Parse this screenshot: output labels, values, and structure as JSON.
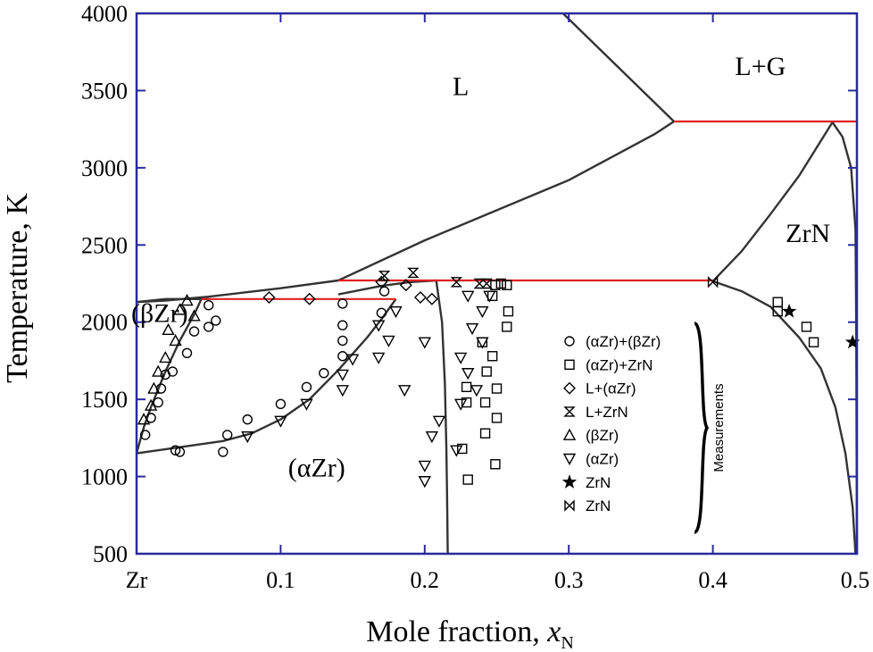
{
  "chart_data": {
    "type": "scatter",
    "title": "",
    "xlabel": "Mole fraction, ",
    "xlabel_var": "x",
    "xlabel_sub": "N",
    "ylabel": "Temperature, K",
    "xlim": [
      0,
      0.5
    ],
    "ylim": [
      500,
      4000
    ],
    "x_ticks": [
      {
        "value": 0,
        "label": "Zr"
      },
      {
        "value": 0.1,
        "label": "0.1"
      },
      {
        "value": 0.2,
        "label": "0.2"
      },
      {
        "value": 0.3,
        "label": "0.3"
      },
      {
        "value": 0.4,
        "label": "0.4"
      },
      {
        "value": 0.5,
        "label": "0.5"
      }
    ],
    "y_ticks": [
      {
        "value": 500,
        "label": "500"
      },
      {
        "value": 1000,
        "label": "1000"
      },
      {
        "value": 1500,
        "label": "1500"
      },
      {
        "value": 2000,
        "label": "2000"
      },
      {
        "value": 2500,
        "label": "2500"
      },
      {
        "value": 3000,
        "label": "3000"
      },
      {
        "value": 3500,
        "label": "3500"
      },
      {
        "value": 4000,
        "label": "4000"
      }
    ],
    "grid": false,
    "legend_position": "center-right",
    "legend_group_label": "Measurements",
    "regions": [
      {
        "label": "L",
        "x": 0.225,
        "y": 3470
      },
      {
        "label": "L+G",
        "x": 0.433,
        "y": 3600
      },
      {
        "label": "ZrN",
        "x": 0.466,
        "y": 2520
      },
      {
        "label": "(βZr)",
        "x": 0.016,
        "y": 2000
      },
      {
        "label": "(αZr)",
        "x": 0.125,
        "y": 1000
      }
    ],
    "phase_lines": [
      {
        "name": "liquidus-left",
        "color": "#333333",
        "points": [
          [
            0,
            2130
          ],
          [
            0.02,
            2140
          ],
          [
            0.05,
            2165
          ],
          [
            0.1,
            2220
          ],
          [
            0.14,
            2270
          ]
        ]
      },
      {
        "name": "liquidus-upper",
        "color": "#333333",
        "points": [
          [
            0.14,
            2270
          ],
          [
            0.2,
            2530
          ],
          [
            0.3,
            2920
          ],
          [
            0.36,
            3220
          ],
          [
            0.373,
            3300
          ]
        ]
      },
      {
        "name": "gas-boundary",
        "color": "#333333",
        "points": [
          [
            0.296,
            4000
          ],
          [
            0.373,
            3300
          ]
        ]
      },
      {
        "name": "zrn-congruent-left",
        "color": "#333333",
        "points": [
          [
            0.4,
            2265
          ],
          [
            0.42,
            2460
          ],
          [
            0.44,
            2700
          ],
          [
            0.46,
            2950
          ],
          [
            0.483,
            3295
          ]
        ]
      },
      {
        "name": "zrn-congruent-right",
        "color": "#333333",
        "points": [
          [
            0.483,
            3295
          ],
          [
            0.49,
            3200
          ],
          [
            0.496,
            3000
          ],
          [
            0.499,
            2600
          ],
          [
            0.4995,
            2000
          ],
          [
            0.5,
            500
          ]
        ]
      },
      {
        "name": "zrn-solvus",
        "color": "#333333",
        "points": [
          [
            0.4,
            2265
          ],
          [
            0.42,
            2200
          ],
          [
            0.44,
            2100
          ],
          [
            0.46,
            1900
          ],
          [
            0.475,
            1700
          ],
          [
            0.485,
            1450
          ],
          [
            0.492,
            1150
          ],
          [
            0.497,
            800
          ],
          [
            0.499,
            500
          ]
        ]
      },
      {
        "name": "alpha-zr-solvus",
        "color": "#333333",
        "points": [
          [
            0.208,
            2270
          ],
          [
            0.212,
            2000
          ],
          [
            0.214,
            1600
          ],
          [
            0.215,
            1200
          ],
          [
            0.2155,
            900
          ],
          [
            0.216,
            500
          ]
        ]
      },
      {
        "name": "alpha-zr-liquidus",
        "color": "#333333",
        "points": [
          [
            0.14,
            2180
          ],
          [
            0.17,
            2235
          ],
          [
            0.19,
            2260
          ],
          [
            0.208,
            2270
          ]
        ]
      },
      {
        "name": "beta-zr-liquidus",
        "color": "#333333",
        "points": [
          [
            0,
            2130
          ],
          [
            0.02,
            2150
          ],
          [
            0.035,
            2150
          ],
          [
            0.05,
            2150
          ]
        ]
      },
      {
        "name": "beta-alpha-upper",
        "color": "#333333",
        "points": [
          [
            0,
            1150
          ],
          [
            0.03,
            1190
          ],
          [
            0.06,
            1230
          ],
          [
            0.08,
            1280
          ],
          [
            0.1,
            1370
          ],
          [
            0.12,
            1500
          ],
          [
            0.14,
            1690
          ],
          [
            0.16,
            1900
          ],
          [
            0.17,
            2020
          ],
          [
            0.18,
            2150
          ]
        ]
      },
      {
        "name": "beta-alpha-lower",
        "color": "#333333",
        "points": [
          [
            0,
            1150
          ],
          [
            0.005,
            1320
          ],
          [
            0.01,
            1450
          ],
          [
            0.02,
            1680
          ],
          [
            0.03,
            1880
          ],
          [
            0.04,
            2050
          ],
          [
            0.045,
            2150
          ]
        ]
      },
      {
        "name": "eutectic-2150",
        "color": "#e02020",
        "points": [
          [
            0.045,
            2150
          ],
          [
            0.18,
            2150
          ]
        ]
      },
      {
        "name": "peritectic-2265",
        "color": "#e02020",
        "points": [
          [
            0.14,
            2270
          ],
          [
            0.4,
            2270
          ]
        ]
      },
      {
        "name": "monotectic-3300",
        "color": "#e02020",
        "points": [
          [
            0.373,
            3300
          ],
          [
            0.5,
            3300
          ]
        ]
      }
    ],
    "series": [
      {
        "name": "(αZr)+(βZr)",
        "marker": "circle",
        "points": [
          [
            0.006,
            1270
          ],
          [
            0.01,
            1380
          ],
          [
            0.015,
            1480
          ],
          [
            0.017,
            1570
          ],
          [
            0.02,
            1660
          ],
          [
            0.025,
            1680
          ],
          [
            0.027,
            1170
          ],
          [
            0.035,
            1800
          ],
          [
            0.04,
            1940
          ],
          [
            0.05,
            1970
          ],
          [
            0.05,
            2110
          ],
          [
            0.055,
            2010
          ],
          [
            0.063,
            1270
          ],
          [
            0.06,
            1160
          ],
          [
            0.077,
            1370
          ],
          [
            0.1,
            1470
          ],
          [
            0.118,
            1580
          ],
          [
            0.13,
            1670
          ],
          [
            0.143,
            1780
          ],
          [
            0.143,
            1880
          ],
          [
            0.143,
            1980
          ],
          [
            0.143,
            2120
          ],
          [
            0.17,
            2060
          ],
          [
            0.172,
            2200
          ],
          [
            0.03,
            1160
          ]
        ]
      },
      {
        "name": "(αZr)+ZrN",
        "marker": "square",
        "points": [
          [
            0.226,
            1180
          ],
          [
            0.229,
            1480
          ],
          [
            0.229,
            1580
          ],
          [
            0.23,
            980
          ],
          [
            0.24,
            1870
          ],
          [
            0.242,
            1280
          ],
          [
            0.242,
            1480
          ],
          [
            0.243,
            1680
          ],
          [
            0.247,
            1780
          ],
          [
            0.247,
            2170
          ],
          [
            0.249,
            1080
          ],
          [
            0.25,
            1380
          ],
          [
            0.25,
            1570
          ],
          [
            0.249,
            2240
          ],
          [
            0.257,
            2240
          ],
          [
            0.258,
            2070
          ],
          [
            0.257,
            1970
          ],
          [
            0.253,
            2250
          ],
          [
            0.445,
            2130
          ],
          [
            0.445,
            2070
          ],
          [
            0.465,
            1970
          ],
          [
            0.47,
            1870
          ]
        ]
      },
      {
        "name": "L+(αZr)",
        "marker": "diamond",
        "points": [
          [
            0.092,
            2160
          ],
          [
            0.12,
            2150
          ],
          [
            0.17,
            2260
          ],
          [
            0.187,
            2240
          ],
          [
            0.197,
            2160
          ],
          [
            0.205,
            2150
          ]
        ]
      },
      {
        "name": "L+ZrN",
        "marker": "hourglass",
        "points": [
          [
            0.172,
            2300
          ],
          [
            0.192,
            2320
          ],
          [
            0.222,
            2260
          ],
          [
            0.238,
            2250
          ],
          [
            0.243,
            2250
          ]
        ]
      },
      {
        "name": "(βZr)",
        "marker": "triangle-up",
        "points": [
          [
            0.005,
            1370
          ],
          [
            0.01,
            1460
          ],
          [
            0.012,
            1570
          ],
          [
            0.015,
            1680
          ],
          [
            0.02,
            1770
          ],
          [
            0.022,
            1950
          ],
          [
            0.027,
            1880
          ],
          [
            0.03,
            2080
          ],
          [
            0.035,
            2140
          ],
          [
            0.04,
            2040
          ]
        ]
      },
      {
        "name": "(αZr)",
        "marker": "triangle-down",
        "points": [
          [
            0.077,
            1260
          ],
          [
            0.1,
            1360
          ],
          [
            0.118,
            1470
          ],
          [
            0.143,
            1560
          ],
          [
            0.143,
            1660
          ],
          [
            0.15,
            1760
          ],
          [
            0.168,
            1980
          ],
          [
            0.175,
            1880
          ],
          [
            0.168,
            1770
          ],
          [
            0.18,
            2070
          ],
          [
            0.186,
            1560
          ],
          [
            0.2,
            1870
          ],
          [
            0.205,
            1260
          ],
          [
            0.21,
            1360
          ],
          [
            0.2,
            1070
          ],
          [
            0.2,
            970
          ],
          [
            0.222,
            1170
          ],
          [
            0.225,
            1470
          ],
          [
            0.225,
            1770
          ],
          [
            0.23,
            1670
          ],
          [
            0.233,
            1960
          ],
          [
            0.236,
            1560
          ],
          [
            0.24,
            2070
          ],
          [
            0.245,
            2170
          ],
          [
            0.24,
            1870
          ],
          [
            0.23,
            2170
          ]
        ]
      },
      {
        "name": "ZrN",
        "marker": "star",
        "points": [
          [
            0.453,
            2070
          ],
          [
            0.497,
            1870
          ]
        ]
      },
      {
        "name": "ZrN",
        "marker": "bowtie",
        "points": [
          [
            0.4,
            2260
          ]
        ]
      }
    ]
  }
}
